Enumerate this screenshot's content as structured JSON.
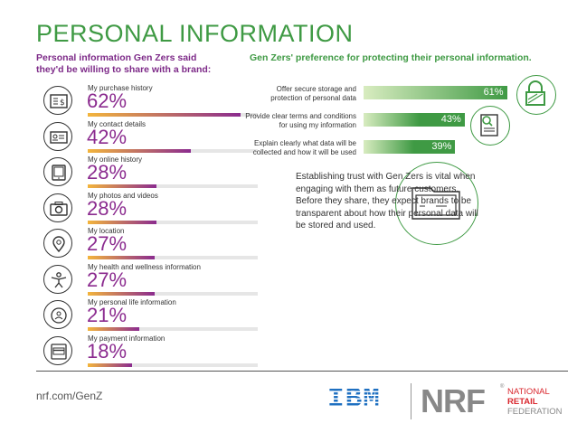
{
  "title": "PERSONAL INFORMATION",
  "left_subtitle": "Personal information Gen Zers said they'd be willing to share with a brand:",
  "right_subtitle": "Gen Zers' preference for protecting their personal information.",
  "trust_text": "Establishing trust with Gen Zers is vital when engaging with them as future customers. Before they share, they expect brands to be transparent about how their personal data will be stored and used.",
  "footer": {
    "url": "nrf.com/GenZ",
    "ibm_logo": "IBM",
    "nrf_logo": "NRF",
    "nrf_name_line1": "NATIONAL",
    "nrf_name_line2": "RETAIL",
    "nrf_name_line3": "FEDERATION",
    "nrf_reg": "®"
  },
  "colors": {
    "green": "#3f9a44",
    "purple": "#8b2b8f",
    "grad_start": "#f3b53c",
    "grad_end": "#8b2b8f",
    "ibm_blue": "#1f70c1",
    "nrf_red": "#d9272e",
    "nrf_gray": "#888888"
  },
  "chart_data": [
    {
      "type": "bar",
      "orientation": "horizontal",
      "categories": [
        "My purchase history",
        "My contact details",
        "My online history",
        "My photos and videos",
        "My location",
        "My health and wellness information",
        "My personal life information",
        "My payment information"
      ],
      "values": [
        62,
        42,
        28,
        28,
        27,
        27,
        21,
        18
      ],
      "value_labels": [
        "62%",
        "42%",
        "28%",
        "28%",
        "27%",
        "27%",
        "21%",
        "18%"
      ],
      "icons": [
        "receipt-icon",
        "contact-card-icon",
        "online-tablet-icon",
        "camera-icon",
        "location-pin-icon",
        "health-person-icon",
        "personal-life-icon",
        "payment-card-icon"
      ],
      "xlim": [
        0,
        100
      ]
    },
    {
      "type": "bar",
      "orientation": "horizontal",
      "categories": [
        "Offer secure storage and protection of personal data",
        "Provide clear terms and conditions for using my information",
        "Explain clearly what data will be collected and how it will be used"
      ],
      "label_lines": [
        [
          "Offer secure storage and",
          "protection of personal data"
        ],
        [
          "Provide clear terms and conditions",
          "for using my information"
        ],
        [
          "Explain clearly what data will be",
          "collected and how it will be used"
        ]
      ],
      "values": [
        61,
        43,
        39
      ],
      "value_labels": [
        "61%",
        "43%",
        "39%"
      ],
      "icons": [
        "padlock-icon",
        "document-search-icon",
        "folder-icon"
      ],
      "xlim": [
        0,
        100
      ]
    }
  ]
}
